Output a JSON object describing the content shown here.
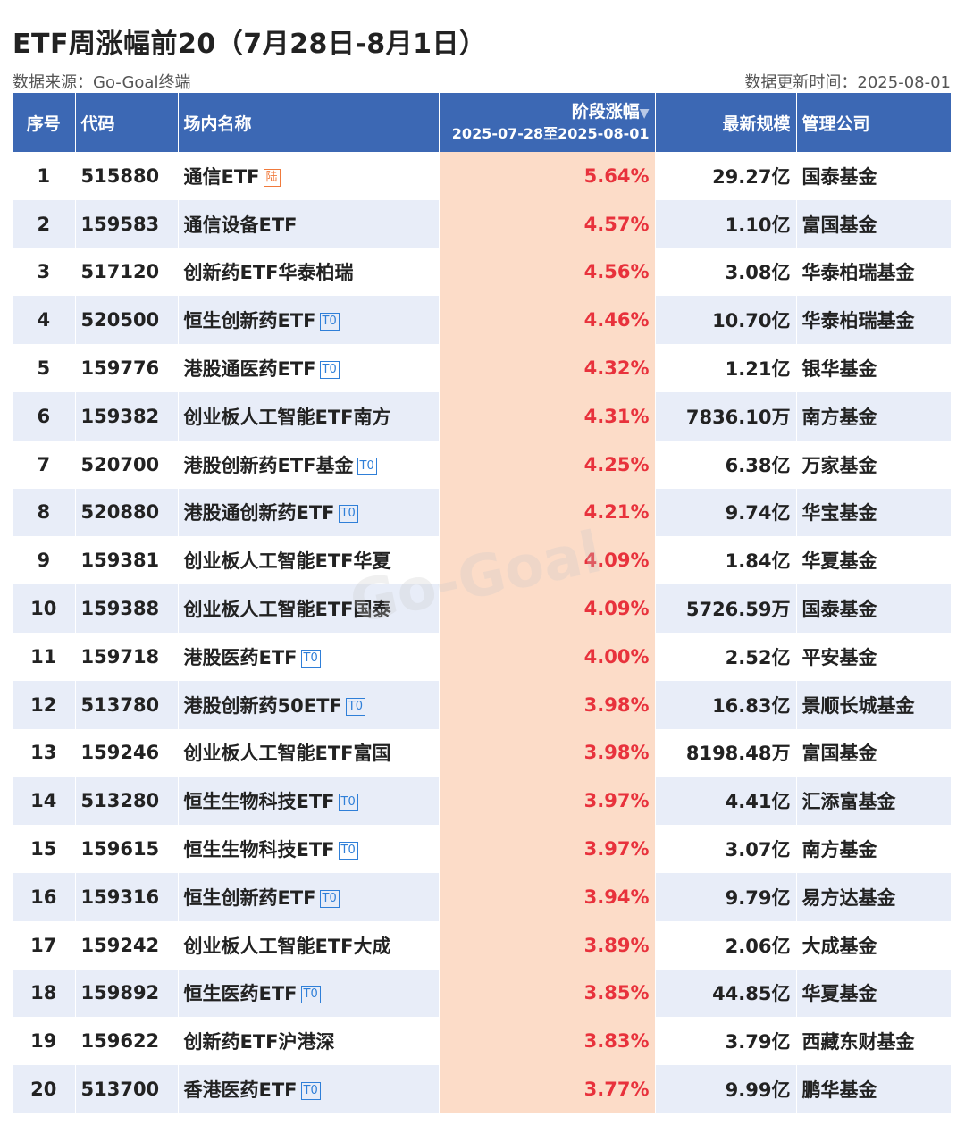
{
  "title": "ETF周涨幅前20（7月28日-8月1日）",
  "source": "数据来源：Go-Goal终端",
  "updated": "数据更新时间：2025-08-01",
  "watermark": "Go-Goal",
  "colors": {
    "header": "#3c68b4",
    "highlight": "#fcdcc8",
    "up": "#e8323c",
    "stripe": "#e8edf8"
  },
  "headers": {
    "seq": "序号",
    "code": "代码",
    "name": "场内名称",
    "change": "阶段涨幅",
    "change_range": "2025-07-28至2025-08-01",
    "scale": "最新规模",
    "company": "管理公司"
  },
  "rows": [
    {
      "seq": "1",
      "code": "515880",
      "name": "通信ETF",
      "tag": "陆",
      "change": "5.64%",
      "scale": "29.27亿",
      "company": "国泰基金"
    },
    {
      "seq": "2",
      "code": "159583",
      "name": "通信设备ETF",
      "tag": "",
      "change": "4.57%",
      "scale": "1.10亿",
      "company": "富国基金"
    },
    {
      "seq": "3",
      "code": "517120",
      "name": "创新药ETF华泰柏瑞",
      "tag": "",
      "change": "4.56%",
      "scale": "3.08亿",
      "company": "华泰柏瑞基金"
    },
    {
      "seq": "4",
      "code": "520500",
      "name": "恒生创新药ETF",
      "tag": "T0",
      "change": "4.46%",
      "scale": "10.70亿",
      "company": "华泰柏瑞基金"
    },
    {
      "seq": "5",
      "code": "159776",
      "name": "港股通医药ETF",
      "tag": "T0",
      "change": "4.32%",
      "scale": "1.21亿",
      "company": "银华基金"
    },
    {
      "seq": "6",
      "code": "159382",
      "name": "创业板人工智能ETF南方",
      "tag": "",
      "change": "4.31%",
      "scale": "7836.10万",
      "company": "南方基金"
    },
    {
      "seq": "7",
      "code": "520700",
      "name": "港股创新药ETF基金",
      "tag": "T0",
      "change": "4.25%",
      "scale": "6.38亿",
      "company": "万家基金"
    },
    {
      "seq": "8",
      "code": "520880",
      "name": "港股通创新药ETF",
      "tag": "T0",
      "change": "4.21%",
      "scale": "9.74亿",
      "company": "华宝基金"
    },
    {
      "seq": "9",
      "code": "159381",
      "name": "创业板人工智能ETF华夏",
      "tag": "",
      "change": "4.09%",
      "scale": "1.84亿",
      "company": "华夏基金"
    },
    {
      "seq": "10",
      "code": "159388",
      "name": "创业板人工智能ETF国泰",
      "tag": "",
      "change": "4.09%",
      "scale": "5726.59万",
      "company": "国泰基金"
    },
    {
      "seq": "11",
      "code": "159718",
      "name": "港股医药ETF",
      "tag": "T0",
      "change": "4.00%",
      "scale": "2.52亿",
      "company": "平安基金"
    },
    {
      "seq": "12",
      "code": "513780",
      "name": "港股创新药50ETF",
      "tag": "T0",
      "change": "3.98%",
      "scale": "16.83亿",
      "company": "景顺长城基金"
    },
    {
      "seq": "13",
      "code": "159246",
      "name": "创业板人工智能ETF富国",
      "tag": "",
      "change": "3.98%",
      "scale": "8198.48万",
      "company": "富国基金"
    },
    {
      "seq": "14",
      "code": "513280",
      "name": "恒生生物科技ETF",
      "tag": "T0",
      "change": "3.97%",
      "scale": "4.41亿",
      "company": "汇添富基金"
    },
    {
      "seq": "15",
      "code": "159615",
      "name": "恒生生物科技ETF",
      "tag": "T0",
      "change": "3.97%",
      "scale": "3.07亿",
      "company": "南方基金"
    },
    {
      "seq": "16",
      "code": "159316",
      "name": "恒生创新药ETF",
      "tag": "T0",
      "change": "3.94%",
      "scale": "9.79亿",
      "company": "易方达基金"
    },
    {
      "seq": "17",
      "code": "159242",
      "name": "创业板人工智能ETF大成",
      "tag": "",
      "change": "3.89%",
      "scale": "2.06亿",
      "company": "大成基金"
    },
    {
      "seq": "18",
      "code": "159892",
      "name": "恒生医药ETF",
      "tag": "T0",
      "change": "3.85%",
      "scale": "44.85亿",
      "company": "华夏基金"
    },
    {
      "seq": "19",
      "code": "159622",
      "name": "创新药ETF沪港深",
      "tag": "",
      "change": "3.83%",
      "scale": "3.79亿",
      "company": "西藏东财基金"
    },
    {
      "seq": "20",
      "code": "513700",
      "name": "香港医药ETF",
      "tag": "T0",
      "change": "3.77%",
      "scale": "9.99亿",
      "company": "鹏华基金"
    }
  ]
}
